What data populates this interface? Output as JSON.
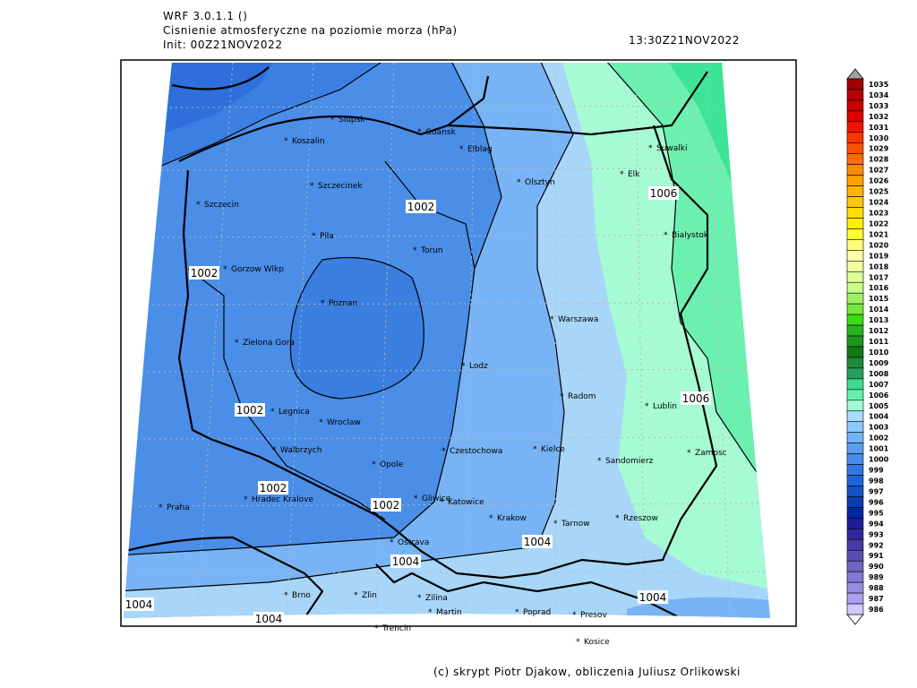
{
  "header": {
    "model": "WRF 3.0.1.1 ()",
    "title": "Cisnienie atmosferyczne na poziomie morza (hPa)",
    "init": "Init: 00Z21NOV2022",
    "valid": "13:30Z21NOV2022"
  },
  "cities": [
    "Slupsk",
    "Koszalin",
    "Gdansk",
    "Elblag",
    "Olsztyn",
    "Suwalki",
    "Elk",
    "Szczecinek",
    "Szczecin",
    "Bialystok",
    "Pila",
    "Torun",
    "Gorzow Wlkp",
    "Poznan",
    "Warszawa",
    "Zielona Gora",
    "Lodz",
    "Radom",
    "Lublin",
    "Legnica",
    "Wroclaw",
    "Walbrzych",
    "Czestochowa",
    "Kielce",
    "Sandomierz",
    "Zamosc",
    "Opole",
    "Gliwice",
    "Katowice",
    "Praha",
    "Hradec Kralove",
    "Krakow",
    "Tarnow",
    "Rzeszow",
    "Ostrava",
    "Brno",
    "Zlin",
    "Zilina",
    "Martin",
    "Poprad",
    "Presov",
    "Trencin",
    "Kosice"
  ],
  "contour_labels": [
    1002,
    1002,
    1002,
    1002,
    1002,
    1004,
    1004,
    1004,
    1004,
    1004,
    1006,
    1006
  ],
  "colorbar": {
    "levels": [
      1035,
      1034,
      1033,
      1032,
      1031,
      1030,
      1029,
      1028,
      1027,
      1026,
      1025,
      1024,
      1023,
      1022,
      1021,
      1020,
      1019,
      1018,
      1017,
      1016,
      1015,
      1014,
      1013,
      1012,
      1011,
      1010,
      1009,
      1008,
      1007,
      1006,
      1005,
      1004,
      1003,
      1002,
      1001,
      1000,
      999,
      998,
      997,
      996,
      995,
      994,
      993,
      992,
      991,
      990,
      989,
      988,
      987,
      986
    ],
    "colors": [
      "#a00000",
      "#b40000",
      "#c80000",
      "#dc0000",
      "#f01400",
      "#ff3200",
      "#ff5000",
      "#ff6e00",
      "#ff8c00",
      "#ffa000",
      "#ffb400",
      "#ffc800",
      "#ffdc00",
      "#fff000",
      "#ffff32",
      "#ffff78",
      "#ffffaa",
      "#f0ffa0",
      "#dcff96",
      "#c8ff8c",
      "#a0f064",
      "#78e63c",
      "#3cdc14",
      "#28b41e",
      "#1e961e",
      "#147814",
      "#1e8c3c",
      "#28a05a",
      "#3cdc8c",
      "#64f0aa",
      "#a0ffd2",
      "#aadcff",
      "#8cc8ff",
      "#6eb4ff",
      "#5aa0f0",
      "#468ceb",
      "#3278e6",
      "#1e64dc",
      "#1450c8",
      "#0a3cb4",
      "#0028a0",
      "#1e1e96",
      "#32289b",
      "#463ca5",
      "#5a50b4",
      "#6e64c3",
      "#8278d2",
      "#968ce1",
      "#aaa0f0",
      "#d2c8ff"
    ]
  },
  "footer": "(c) skrypt Piotr Djakow, obliczenia Juliusz Orlikowski"
}
